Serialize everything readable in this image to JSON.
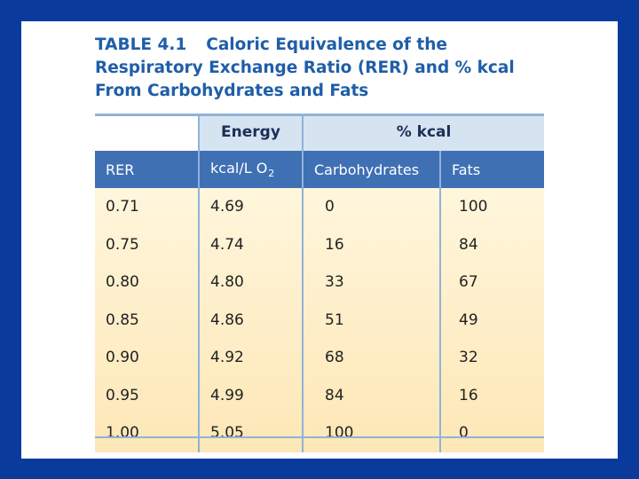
{
  "title": {
    "table_number": "TABLE 4.1",
    "text": "Caloric Equivalence of the Respiratory Exchange Ratio (RER) and % kcal From Carbohydrates and Fats"
  },
  "table": {
    "group_headers": {
      "energy": "Energy",
      "percent_kcal": "% kcal"
    },
    "columns": {
      "rer": "RER",
      "kcal_prefix": "kcal/L O",
      "kcal_sub": "2",
      "carbohydrates": "Carbohydrates",
      "fats": "Fats"
    },
    "rows": [
      {
        "rer": "0.71",
        "kcal": "4.69",
        "carb": "0",
        "fat": "100"
      },
      {
        "rer": "0.75",
        "kcal": "4.74",
        "carb": "16",
        "fat": "84"
      },
      {
        "rer": "0.80",
        "kcal": "4.80",
        "carb": "33",
        "fat": "67"
      },
      {
        "rer": "0.85",
        "kcal": "4.86",
        "carb": "51",
        "fat": "49"
      },
      {
        "rer": "0.90",
        "kcal": "4.92",
        "carb": "68",
        "fat": "32"
      },
      {
        "rer": "0.95",
        "kcal": "4.99",
        "carb": "84",
        "fat": "16"
      },
      {
        "rer": "1.00",
        "kcal": "5.05",
        "carb": "100",
        "fat": "0"
      }
    ]
  },
  "colors": {
    "background": "#0a3a9c",
    "title": "#1f5ea8",
    "header_bar": "#3f70b4",
    "group_header": "#d6e4f2",
    "body_gradient_top": "#fff6dc",
    "body_gradient_bottom": "#fde7b6"
  }
}
